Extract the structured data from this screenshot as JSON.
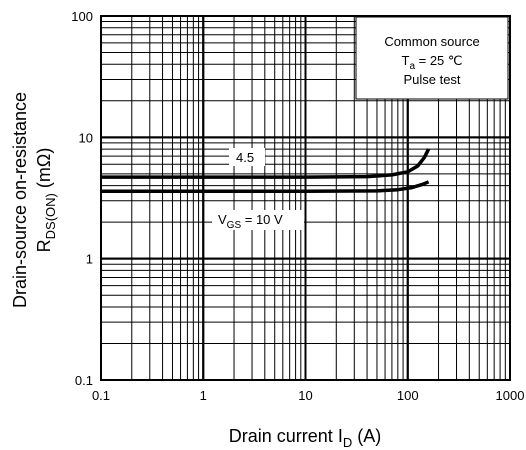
{
  "chart_data": {
    "type": "line",
    "xscale": "log",
    "yscale": "log",
    "xlim": [
      0.1,
      1000
    ],
    "ylim": [
      0.1,
      100
    ],
    "grid": true,
    "x_ticks": [
      "0.1",
      "1",
      "10",
      "100",
      "1000"
    ],
    "y_ticks": [
      "0.1",
      "1",
      "10",
      "100"
    ],
    "xlabel": {
      "main": "Drain current",
      "symbol": "I",
      "sub": "D",
      "unit": "(A)"
    },
    "ylabel": {
      "line1": "Drain-source on-resistance",
      "symbol": "R",
      "sub": "DS(ON)",
      "unit": "(mΩ)"
    },
    "conditions": {
      "line1": "Common source",
      "t_symbol": "T",
      "t_sub": "a",
      "t_value": " = 25 ℃",
      "line3": "Pulse test"
    },
    "series": [
      {
        "label_main": "4.5",
        "points": [
          [
            0.1,
            4.7
          ],
          [
            1,
            4.7
          ],
          [
            10,
            4.7
          ],
          [
            40,
            4.75
          ],
          [
            70,
            4.9
          ],
          [
            100,
            5.2
          ],
          [
            125,
            5.8
          ],
          [
            145,
            6.8
          ],
          [
            160,
            8.0
          ]
        ]
      },
      {
        "label_main": "V",
        "label_sub": "GS",
        "label_rest": " = 10 V",
        "points": [
          [
            0.1,
            3.6
          ],
          [
            1,
            3.6
          ],
          [
            10,
            3.6
          ],
          [
            50,
            3.62
          ],
          [
            80,
            3.7
          ],
          [
            110,
            3.85
          ],
          [
            140,
            4.1
          ],
          [
            160,
            4.3
          ]
        ]
      }
    ]
  }
}
